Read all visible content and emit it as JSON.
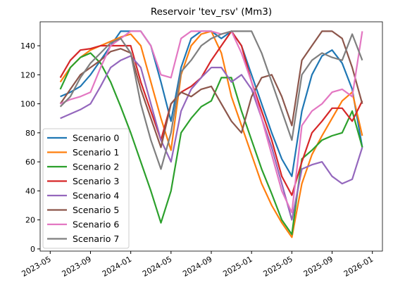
{
  "chart_data": {
    "type": "line",
    "title": "Reservoir 'tev_rsv' (Mm3)",
    "x": [
      "2023-06",
      "2023-07",
      "2023-08",
      "2023-09",
      "2023-10",
      "2023-11",
      "2023-12",
      "2024-01",
      "2024-02",
      "2024-03",
      "2024-04",
      "2024-05",
      "2024-06",
      "2024-07",
      "2024-08",
      "2024-09",
      "2024-10",
      "2024-11",
      "2024-12",
      "2025-01",
      "2025-02",
      "2025-03",
      "2025-04",
      "2025-05",
      "2025-06",
      "2025-07",
      "2025-08",
      "2025-09",
      "2025-10",
      "2025-11",
      "2025-12"
    ],
    "xlim": [
      "2023-04",
      "2026-02"
    ],
    "xticks": [
      "2023-05",
      "2023-09",
      "2024-01",
      "2024-05",
      "2024-09",
      "2025-01",
      "2025-05",
      "2025-09",
      "2026-01"
    ],
    "ylim": [
      -1.5,
      156.5
    ],
    "yticks": [
      0,
      20,
      40,
      60,
      80,
      100,
      120,
      140
    ],
    "grid": false,
    "legend": "lower left",
    "series": [
      {
        "name": "Scenario 0",
        "color": "#1f77b4",
        "values": [
          105,
          108,
          112,
          120,
          130,
          140,
          150,
          150,
          150,
          140,
          115,
          88,
          125,
          145,
          150,
          150,
          145,
          150,
          140,
          120,
          100,
          80,
          62,
          50,
          95,
          120,
          133,
          137,
          128,
          110,
          70
        ]
      },
      {
        "name": "Scenario 1",
        "color": "#ff7f0e",
        "values": [
          115,
          125,
          132,
          137,
          140,
          143,
          146,
          148,
          140,
          115,
          90,
          68,
          120,
          140,
          148,
          150,
          135,
          105,
          85,
          65,
          45,
          30,
          18,
          8,
          45,
          65,
          78,
          90,
          102,
          108,
          78
        ]
      },
      {
        "name": "Scenario 2",
        "color": "#2ca02c",
        "values": [
          110,
          125,
          132,
          135,
          128,
          115,
          98,
          80,
          60,
          40,
          18,
          40,
          80,
          90,
          98,
          102,
          118,
          118,
          95,
          75,
          55,
          38,
          20,
          10,
          62,
          68,
          75,
          78,
          80,
          95,
          70
        ]
      },
      {
        "name": "Scenario 3",
        "color": "#d62728",
        "values": [
          118,
          130,
          137,
          138,
          140,
          140,
          140,
          140,
          115,
          95,
          75,
          100,
          108,
          112,
          118,
          130,
          140,
          150,
          140,
          115,
          95,
          75,
          50,
          37,
          60,
          80,
          88,
          97,
          97,
          88,
          102
        ]
      },
      {
        "name": "Scenario 4",
        "color": "#9467bd",
        "values": [
          90,
          93,
          96,
          100,
          112,
          125,
          130,
          133,
          125,
          100,
          75,
          60,
          95,
          110,
          118,
          125,
          125,
          115,
          120,
          110,
          90,
          70,
          45,
          20,
          55,
          58,
          60,
          50,
          45,
          48,
          70
        ]
      },
      {
        "name": "Scenario 5",
        "color": "#8c564b",
        "values": [
          100,
          110,
          120,
          125,
          130,
          136,
          138,
          135,
          110,
          90,
          70,
          100,
          108,
          105,
          110,
          112,
          100,
          88,
          80,
          105,
          118,
          120,
          105,
          85,
          130,
          140,
          150,
          150,
          145,
          125,
          100
        ]
      },
      {
        "name": "Scenario 6",
        "color": "#e377c2",
        "values": [
          100,
          103,
          105,
          108,
          125,
          140,
          145,
          150,
          150,
          140,
          120,
          118,
          145,
          150,
          150,
          150,
          148,
          150,
          135,
          115,
          90,
          65,
          40,
          25,
          85,
          95,
          100,
          108,
          110,
          105,
          150
        ]
      },
      {
        "name": "Scenario 7",
        "color": "#7f7f7f",
        "values": [
          98,
          105,
          118,
          128,
          135,
          142,
          145,
          135,
          100,
          75,
          55,
          80,
          122,
          130,
          140,
          145,
          148,
          150,
          150,
          150,
          135,
          115,
          95,
          75,
          120,
          130,
          135,
          132,
          130,
          148,
          130
        ]
      }
    ]
  }
}
